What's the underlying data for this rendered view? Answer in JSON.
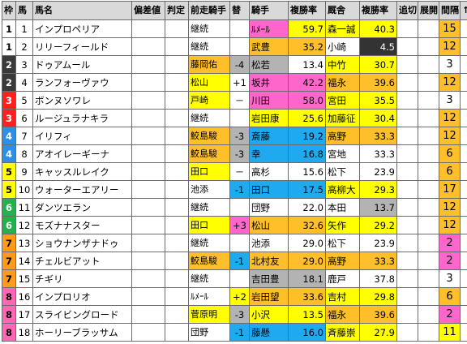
{
  "headers": [
    "枠",
    "馬",
    "馬名",
    "偏差値",
    "判定",
    "前走騎手",
    "替",
    "騎手",
    "複勝率",
    "厩舎",
    "複勝率",
    "追切",
    "展開",
    "間隔",
    "↑"
  ],
  "colors": {
    "yellow": "#ffff00",
    "pink": "#ff66cc",
    "orange": "#ffbf2b",
    "blue": "#1fa9ee",
    "gray": "#b3b3b3",
    "black": "#333333"
  },
  "rows": [
    {
      "waku": "1",
      "uma": "1",
      "name": "インプロペリア",
      "prev_jockey": "継続",
      "swap": "",
      "jockey": "ﾙﾒｰﾙ",
      "jrate": "59.7",
      "stable": "森一誠",
      "srate": "40.3",
      "rest": "15"
    },
    {
      "waku": "1",
      "uma": "2",
      "name": "リリーフィールド",
      "prev_jockey": "継続",
      "swap": "",
      "jockey": "武豊",
      "jrate": "35.2",
      "stable": "小崎",
      "srate": "4.5",
      "rest": "12"
    },
    {
      "waku": "2",
      "uma": "3",
      "name": "ドゥアムール",
      "prev_jockey": "藤岡佑",
      "swap": "-4",
      "jockey": "松若",
      "jrate": "13.4",
      "stable": "中竹",
      "srate": "30.7",
      "rest": "3"
    },
    {
      "waku": "2",
      "uma": "4",
      "name": "ランフォーヴァウ",
      "prev_jockey": "松山",
      "swap": "+1",
      "jockey": "坂井",
      "jrate": "42.2",
      "stable": "福永",
      "srate": "39.6",
      "rest": "12"
    },
    {
      "waku": "3",
      "uma": "5",
      "name": "ボンヌソワレ",
      "prev_jockey": "戸崎",
      "swap": "－",
      "jockey": "川田",
      "jrate": "58.0",
      "stable": "宮田",
      "srate": "35.5",
      "rest": "3"
    },
    {
      "waku": "3",
      "uma": "6",
      "name": "ルージュラナキラ",
      "prev_jockey": "継続",
      "swap": "",
      "jockey": "岩田康",
      "jrate": "25.6",
      "stable": "加藤征",
      "srate": "30.4",
      "rest": "12"
    },
    {
      "waku": "4",
      "uma": "7",
      "name": "イリフィ",
      "prev_jockey": "鮫島駿",
      "swap": "-3",
      "jockey": "斎藤",
      "jrate": "19.2",
      "stable": "高野",
      "srate": "33.3",
      "rest": "12"
    },
    {
      "waku": "4",
      "uma": "8",
      "name": "アオイレーギーナ",
      "prev_jockey": "鮫島駿",
      "swap": "-3",
      "jockey": "幸",
      "jrate": "16.8",
      "stable": "宮地",
      "srate": "33.3",
      "rest": "6"
    },
    {
      "waku": "5",
      "uma": "9",
      "name": "キャッスルレイク",
      "prev_jockey": "田口",
      "swap": "－",
      "jockey": "高杉",
      "jrate": "15.6",
      "stable": "松下",
      "srate": "23.9",
      "rest": "6"
    },
    {
      "waku": "5",
      "uma": "10",
      "name": "ウォーターエアリー",
      "prev_jockey": "池添",
      "swap": "-1",
      "jockey": "田口",
      "jrate": "17.5",
      "stable": "高柳大",
      "srate": "29.3",
      "rest": "17"
    },
    {
      "waku": "6",
      "uma": "11",
      "name": "ダンツエラン",
      "prev_jockey": "継続",
      "swap": "",
      "jockey": "団野",
      "jrate": "22.0",
      "stable": "本田",
      "srate": "13.7",
      "rest": "12"
    },
    {
      "waku": "6",
      "uma": "12",
      "name": "モズナナスター",
      "prev_jockey": "田口",
      "swap": "+3",
      "jockey": "松山",
      "jrate": "32.6",
      "stable": "矢作",
      "srate": "29.2",
      "rest": "12"
    },
    {
      "waku": "7",
      "uma": "13",
      "name": "ショウナンザナドゥ",
      "prev_jockey": "継続",
      "swap": "",
      "jockey": "池添",
      "jrate": "29.0",
      "stable": "松下",
      "srate": "23.9",
      "rest": "2"
    },
    {
      "waku": "7",
      "uma": "14",
      "name": "チェルビアット",
      "prev_jockey": "鮫島駿",
      "swap": "-1",
      "jockey": "北村友",
      "jrate": "29.0",
      "stable": "高野",
      "srate": "33.3",
      "rest": "2"
    },
    {
      "waku": "7",
      "uma": "15",
      "name": "チギリ",
      "prev_jockey": "継続",
      "swap": "",
      "jockey": "吉田豊",
      "jrate": "18.1",
      "stable": "鹿戸",
      "srate": "37.8",
      "rest": "3"
    },
    {
      "waku": "8",
      "uma": "16",
      "name": "インプロリオ",
      "prev_jockey": "ﾙﾒｰﾙ",
      "swap": "+2",
      "jockey": "岩田望",
      "jrate": "33.6",
      "stable": "吉村",
      "srate": "29.8",
      "rest": "6"
    },
    {
      "waku": "8",
      "uma": "17",
      "name": "スライビングロード",
      "prev_jockey": "菅原明",
      "swap": "-3",
      "jockey": "小沢",
      "jrate": "13.5",
      "stable": "福永",
      "srate": "39.6",
      "rest": "2"
    },
    {
      "waku": "8",
      "uma": "18",
      "name": "ホーリーブラッサム",
      "prev_jockey": "団野",
      "swap": "-1",
      "jockey": "藤懸",
      "jrate": "16.0",
      "stable": "斉藤崇",
      "srate": "27.9",
      "rest": "11"
    }
  ]
}
